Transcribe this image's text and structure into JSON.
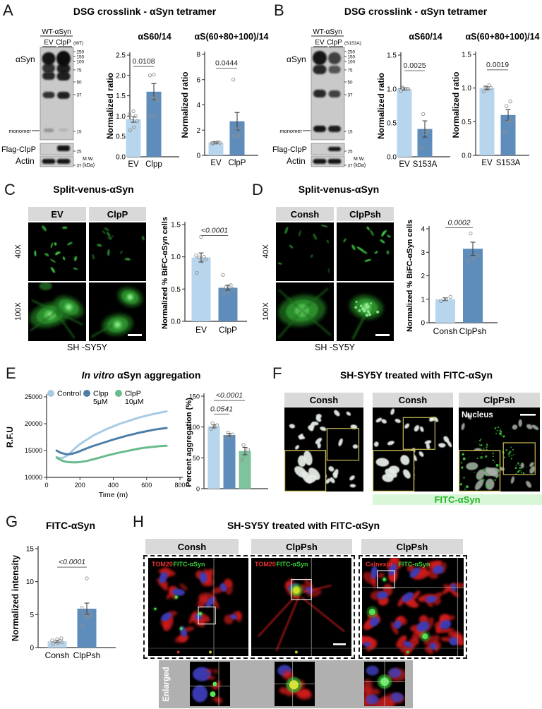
{
  "colors": {
    "bar_light": "#b7d5ec",
    "bar_dark": "#5e8dbb",
    "bar_green": "#7dc39b",
    "line_light": "#a6cbe4",
    "line_mid": "#4d7ea8",
    "line_green": "#69bb8d",
    "fitc_green": "#26b526",
    "header_gray": "#d9d9d9"
  },
  "panels": {
    "A": {
      "label": "A",
      "title": "DSG crosslink - αSyn tetramer",
      "blot": {
        "group": "WT-αSyn",
        "lanes": [
          "EV",
          "ClpP"
        ],
        "variant": "(WT)",
        "target_main": "αSyn",
        "target_monomer": "monomer",
        "target_flag": "Flag-ClpP",
        "target_actin": "Actin",
        "mw_main": [
          "250",
          "150",
          "100",
          "75",
          "50",
          "37",
          "15"
        ],
        "mw_flag": "25",
        "mw_actin": "37",
        "mw_unit_1": "M.W.",
        "mw_unit_2": "(kDa)"
      },
      "charts": [
        {
          "type": "bar",
          "title": "αS60/14",
          "ylabel": "Normalized ratio",
          "ylim": [
            0,
            2.5
          ],
          "yticks": [
            "0.0",
            "0.5",
            "1.0",
            "1.5",
            "2.0",
            "2.5"
          ],
          "categories": [
            "EV",
            "Clpp"
          ],
          "values": [
            0.92,
            1.6
          ],
          "errors": [
            0.07,
            0.2
          ],
          "points": [
            [
              0.65,
              0.72,
              0.88,
              0.95,
              1.0,
              1.05,
              1.12
            ],
            [
              1.0,
              1.02,
              1.4,
              1.45,
              1.5,
              2.0,
              2.02
            ]
          ],
          "colors": [
            "bar_light",
            "bar_dark"
          ],
          "sig": [
            {
              "a": 0,
              "b": 1,
              "y": 2.22,
              "label": "0.0108",
              "italic": false
            }
          ]
        },
        {
          "type": "bar",
          "title": "αS(60+80+100)/14",
          "ylabel": "Normalized ratio",
          "ylim": [
            0,
            8
          ],
          "yticks": [
            "0",
            "2",
            "4",
            "6",
            "8"
          ],
          "categories": [
            "EV",
            "ClpP"
          ],
          "values": [
            1.0,
            2.7
          ],
          "errors": [
            0.06,
            0.7
          ],
          "points": [
            [
              0.95,
              1.0,
              1.0,
              1.0,
              1.05,
              0.97
            ],
            [
              1.5,
              1.55,
              1.6,
              2.1,
              2.2,
              6.0
            ]
          ],
          "colors": [
            "bar_light",
            "bar_dark"
          ],
          "sig": [
            {
              "a": 0,
              "b": 1,
              "y": 6.9,
              "label": "0.0444",
              "italic": false
            }
          ]
        }
      ]
    },
    "B": {
      "label": "B",
      "title": "DSG crosslink - αSyn tetramer",
      "blot": {
        "group": "WT-αSyn",
        "lanes": [
          "EV",
          "ClpP"
        ],
        "variant": "(S153A)",
        "target_main": "αSyn",
        "target_monomer": "monomer",
        "target_flag": "Flag-ClpP",
        "target_actin": "Actin",
        "mw_main": [
          "250",
          "150",
          "100",
          "75",
          "50",
          "37",
          "15"
        ],
        "mw_flag": "25",
        "mw_actin": "37",
        "mw_unit_1": "M.W.",
        "mw_unit_2": "(kDa)"
      },
      "charts": [
        {
          "type": "bar",
          "title": "αS60/14",
          "ylabel": "Normalized ratio",
          "ylim": [
            0,
            1.5
          ],
          "yticks": [
            "0.0",
            "0.5",
            "1.0",
            "1.5"
          ],
          "categories": [
            "EV",
            "S153A"
          ],
          "values": [
            1.0,
            0.41
          ],
          "errors": [
            0.02,
            0.12
          ],
          "points": [
            [
              0.97,
              1.0,
              1.0,
              1.02,
              1.0
            ],
            [
              0.13,
              0.35,
              0.38,
              0.63
            ]
          ],
          "colors": [
            "bar_light",
            "bar_dark"
          ],
          "sig": [
            {
              "a": 0,
              "b": 1,
              "y": 1.27,
              "label": "0.0025",
              "italic": false
            }
          ]
        },
        {
          "type": "bar",
          "title": "αS(60+80+100)/14",
          "ylabel": "Normalized ratio",
          "ylim": [
            0,
            1.5
          ],
          "yticks": [
            "0.0",
            "0.5",
            "1.0",
            "1.5"
          ],
          "categories": [
            "EV",
            "S153A"
          ],
          "values": [
            1.0,
            0.6
          ],
          "errors": [
            0.02,
            0.08
          ],
          "points": [
            [
              0.95,
              0.98,
              1.0,
              1.02,
              1.04
            ],
            [
              0.35,
              0.5,
              0.52,
              0.73,
              0.8
            ]
          ],
          "colors": [
            "bar_light",
            "bar_dark"
          ],
          "sig": [
            {
              "a": 0,
              "b": 1,
              "y": 1.27,
              "label": "0.0019",
              "italic": false
            }
          ]
        }
      ]
    },
    "C": {
      "label": "C",
      "title": "Split-venus-αSyn",
      "columns": [
        "EV",
        "ClpP"
      ],
      "rows": [
        "40X",
        "100X"
      ],
      "cell_line": "SH -SY5Y",
      "chart": {
        "type": "bar",
        "ylabel": "Normalized % BiFC-αSyn cells",
        "ylim": [
          0,
          1.5
        ],
        "yticks": [
          "0.0",
          "0.5",
          "1.0",
          "1.5"
        ],
        "categories": [
          "EV",
          "ClpP"
        ],
        "values": [
          0.99,
          0.52
        ],
        "errors": [
          0.07,
          0.04
        ],
        "points": [
          [
            0.75,
            0.93,
            0.96,
            0.99,
            1.0,
            1.02,
            1.31
          ],
          [
            0.43,
            0.45,
            0.5,
            0.53,
            0.56,
            0.72
          ]
        ],
        "colors": [
          "bar_light",
          "bar_dark"
        ],
        "sig": [
          {
            "a": 0,
            "b": 1,
            "y": 1.33,
            "label": "<0.0001",
            "italic": true
          }
        ]
      }
    },
    "D": {
      "label": "D",
      "title": "Split-venus-αSyn",
      "columns": [
        "Consh",
        "ClpPsh"
      ],
      "rows": [
        "40X",
        "100X"
      ],
      "cell_line": "SH -SY5Y",
      "chart": {
        "type": "bar",
        "ylabel": "Normalized % BiFC-αSyn cells",
        "ylim": [
          0,
          4
        ],
        "yticks": [
          "0",
          "1",
          "2",
          "3",
          "4"
        ],
        "categories": [
          "Consh",
          "ClpPsh"
        ],
        "values": [
          1.0,
          3.15
        ],
        "errors": [
          0.06,
          0.28
        ],
        "points": [
          [
            0.92,
            1.0,
            1.1
          ],
          [
            2.62,
            2.72,
            2.85,
            3.8
          ]
        ],
        "colors": [
          "bar_light",
          "bar_dark"
        ],
        "sig": [
          {
            "a": 0,
            "b": 1,
            "y": 4.05,
            "label": "0.0002",
            "italic": true
          }
        ]
      }
    },
    "E": {
      "label": "E",
      "title_italic": "In vitro",
      "title_rest": " αSyn aggregation",
      "line_chart": {
        "type": "line",
        "xlabel": "Time (m)",
        "ylabel": "R.F.U",
        "xlim": [
          0,
          800
        ],
        "xticks": [
          "0",
          "200",
          "400",
          "600",
          "800"
        ],
        "ylim": [
          10000,
          25000
        ],
        "yticks": [
          "10000",
          "15000",
          "20000",
          "25000"
        ],
        "series": [
          {
            "name": "Control",
            "name2": "",
            "color": "line_light",
            "points": [
              [
                60,
                13750
              ],
              [
                80,
                13600
              ],
              [
                100,
                13650
              ],
              [
                120,
                14000
              ],
              [
                140,
                14500
              ],
              [
                160,
                15100
              ],
              [
                180,
                15700
              ],
              [
                200,
                16200
              ],
              [
                240,
                17000
              ],
              [
                280,
                17800
              ],
              [
                320,
                18400
              ],
              [
                360,
                19000
              ],
              [
                400,
                19500
              ],
              [
                440,
                20000
              ],
              [
                480,
                20400
              ],
              [
                520,
                20800
              ],
              [
                560,
                21200
              ],
              [
                600,
                21500
              ],
              [
                640,
                21800
              ],
              [
                680,
                22050
              ],
              [
                720,
                22300
              ]
            ]
          },
          {
            "name": "Clpp",
            "name2": "5μM",
            "color": "line_mid",
            "points": [
              [
                60,
                15000
              ],
              [
                80,
                14650
              ],
              [
                100,
                14450
              ],
              [
                120,
                14320
              ],
              [
                140,
                14330
              ],
              [
                160,
                14450
              ],
              [
                180,
                14650
              ],
              [
                200,
                14900
              ],
              [
                240,
                15400
              ],
              [
                280,
                15850
              ],
              [
                320,
                16250
              ],
              [
                360,
                16650
              ],
              [
                400,
                17050
              ],
              [
                440,
                17400
              ],
              [
                480,
                17750
              ],
              [
                520,
                18050
              ],
              [
                560,
                18350
              ],
              [
                600,
                18600
              ],
              [
                640,
                18850
              ],
              [
                680,
                19050
              ],
              [
                720,
                19200
              ]
            ]
          },
          {
            "name": "ClpP",
            "name2": "10μM",
            "color": "line_green",
            "points": [
              [
                60,
                13700
              ],
              [
                80,
                13300
              ],
              [
                100,
                13050
              ],
              [
                120,
                12900
              ],
              [
                140,
                12830
              ],
              [
                160,
                12790
              ],
              [
                180,
                12790
              ],
              [
                200,
                12850
              ],
              [
                240,
                13050
              ],
              [
                280,
                13350
              ],
              [
                320,
                13700
              ],
              [
                360,
                14050
              ],
              [
                400,
                14350
              ],
              [
                440,
                14650
              ],
              [
                480,
                14900
              ],
              [
                520,
                15150
              ],
              [
                560,
                15400
              ],
              [
                600,
                15550
              ],
              [
                640,
                15700
              ],
              [
                680,
                15820
              ],
              [
                720,
                15900
              ]
            ]
          }
        ]
      },
      "bar_chart": {
        "type": "bar",
        "ylabel": "Percent aggregation (%)",
        "ylim": [
          0,
          150
        ],
        "yticks": [
          "0",
          "50",
          "100",
          "150"
        ],
        "categories": [
          "",
          "",
          ""
        ],
        "values": [
          101,
          87,
          61
        ],
        "errors": [
          2.5,
          2.5,
          6
        ],
        "points": [
          [
            97,
            100,
            103,
            106
          ],
          [
            83,
            85,
            88,
            91
          ],
          [
            47,
            55,
            63,
            71
          ]
        ],
        "colors": [
          "bar_light",
          "bar_dark",
          "bar_green"
        ],
        "sig": [
          {
            "a": 0,
            "b": 2,
            "y": 143,
            "label": "<0.0001",
            "italic": true
          },
          {
            "a": 0,
            "b": 1,
            "y": 121,
            "label": "0.0541",
            "italic": true
          }
        ]
      }
    },
    "F": {
      "label": "F",
      "title": "SH-SY5Y treated with FITC-αSyn",
      "columns": [
        "Consh",
        "Consh",
        "ClpPsh"
      ],
      "nucleus_label": "Nucleus",
      "fitc_label": "FITC-αSyn"
    },
    "G": {
      "label": "G",
      "title": "FITC-αSyn",
      "chart": {
        "type": "bar",
        "ylabel": "Normalized intensity",
        "ylim": [
          0,
          15
        ],
        "yticks": [
          "0",
          "5",
          "10",
          "15"
        ],
        "categories": [
          "Consh",
          "ClpPsh"
        ],
        "values": [
          0.95,
          5.9
        ],
        "errors": [
          0.15,
          0.85
        ],
        "points": [
          [
            0.55,
            0.7,
            0.8,
            0.9,
            1.0,
            1.1,
            1.25,
            1.4
          ],
          [
            3.2,
            4.6,
            4.8,
            5.1,
            5.4,
            6.0,
            10.5
          ]
        ],
        "colors": [
          "bar_light",
          "bar_dark"
        ],
        "sig": [
          {
            "a": 0,
            "b": 1,
            "y": 12.2,
            "label": "<0.0001",
            "italic": true
          }
        ]
      }
    },
    "H": {
      "label": "H",
      "title": "SH-SY5Y treated with FITC-αSyn",
      "columns": [
        "Consh",
        "ClpPsh",
        "ClpPsh"
      ],
      "image_labels": [
        {
          "stain": "TOM20",
          "probe": "FITC-αSyn"
        },
        {
          "stain": "TOM20",
          "probe": "FITC-αSyn"
        },
        {
          "stain": "Calnexin",
          "probe": "FITC-αSyn"
        }
      ],
      "enlarged_label": "Enlarged"
    }
  }
}
